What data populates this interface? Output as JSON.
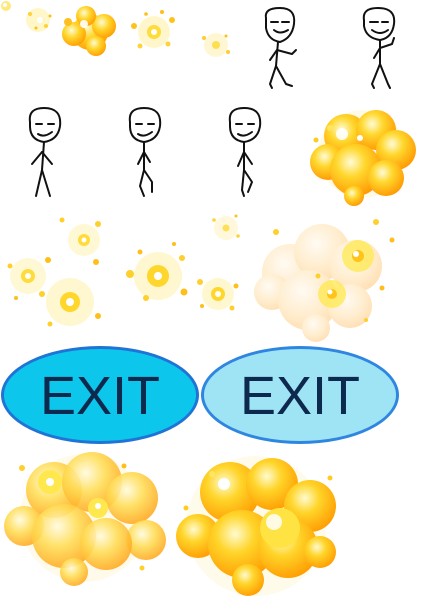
{
  "buttons": {
    "exit_primary": {
      "label": "EXIT",
      "fill": "#0cc7eb",
      "border": "#1f74d6",
      "text_color": "#0d2a4e",
      "state": "normal"
    },
    "exit_secondary": {
      "label": "EXIT",
      "fill": "#9ee4f5",
      "border": "#2f86e0",
      "text_color": "#0d2a4e",
      "state": "hover"
    }
  },
  "stick_figure": {
    "stroke_color": "#111111",
    "frames": [
      "walk-1",
      "walk-2",
      "idle",
      "walk-3",
      "walk-4"
    ]
  },
  "explosion": {
    "colors": [
      "#ffe94a",
      "#ffb91a",
      "#ff9d00",
      "#fff7b0"
    ],
    "sparkle_frames": 7,
    "cloud_frames": 5
  }
}
